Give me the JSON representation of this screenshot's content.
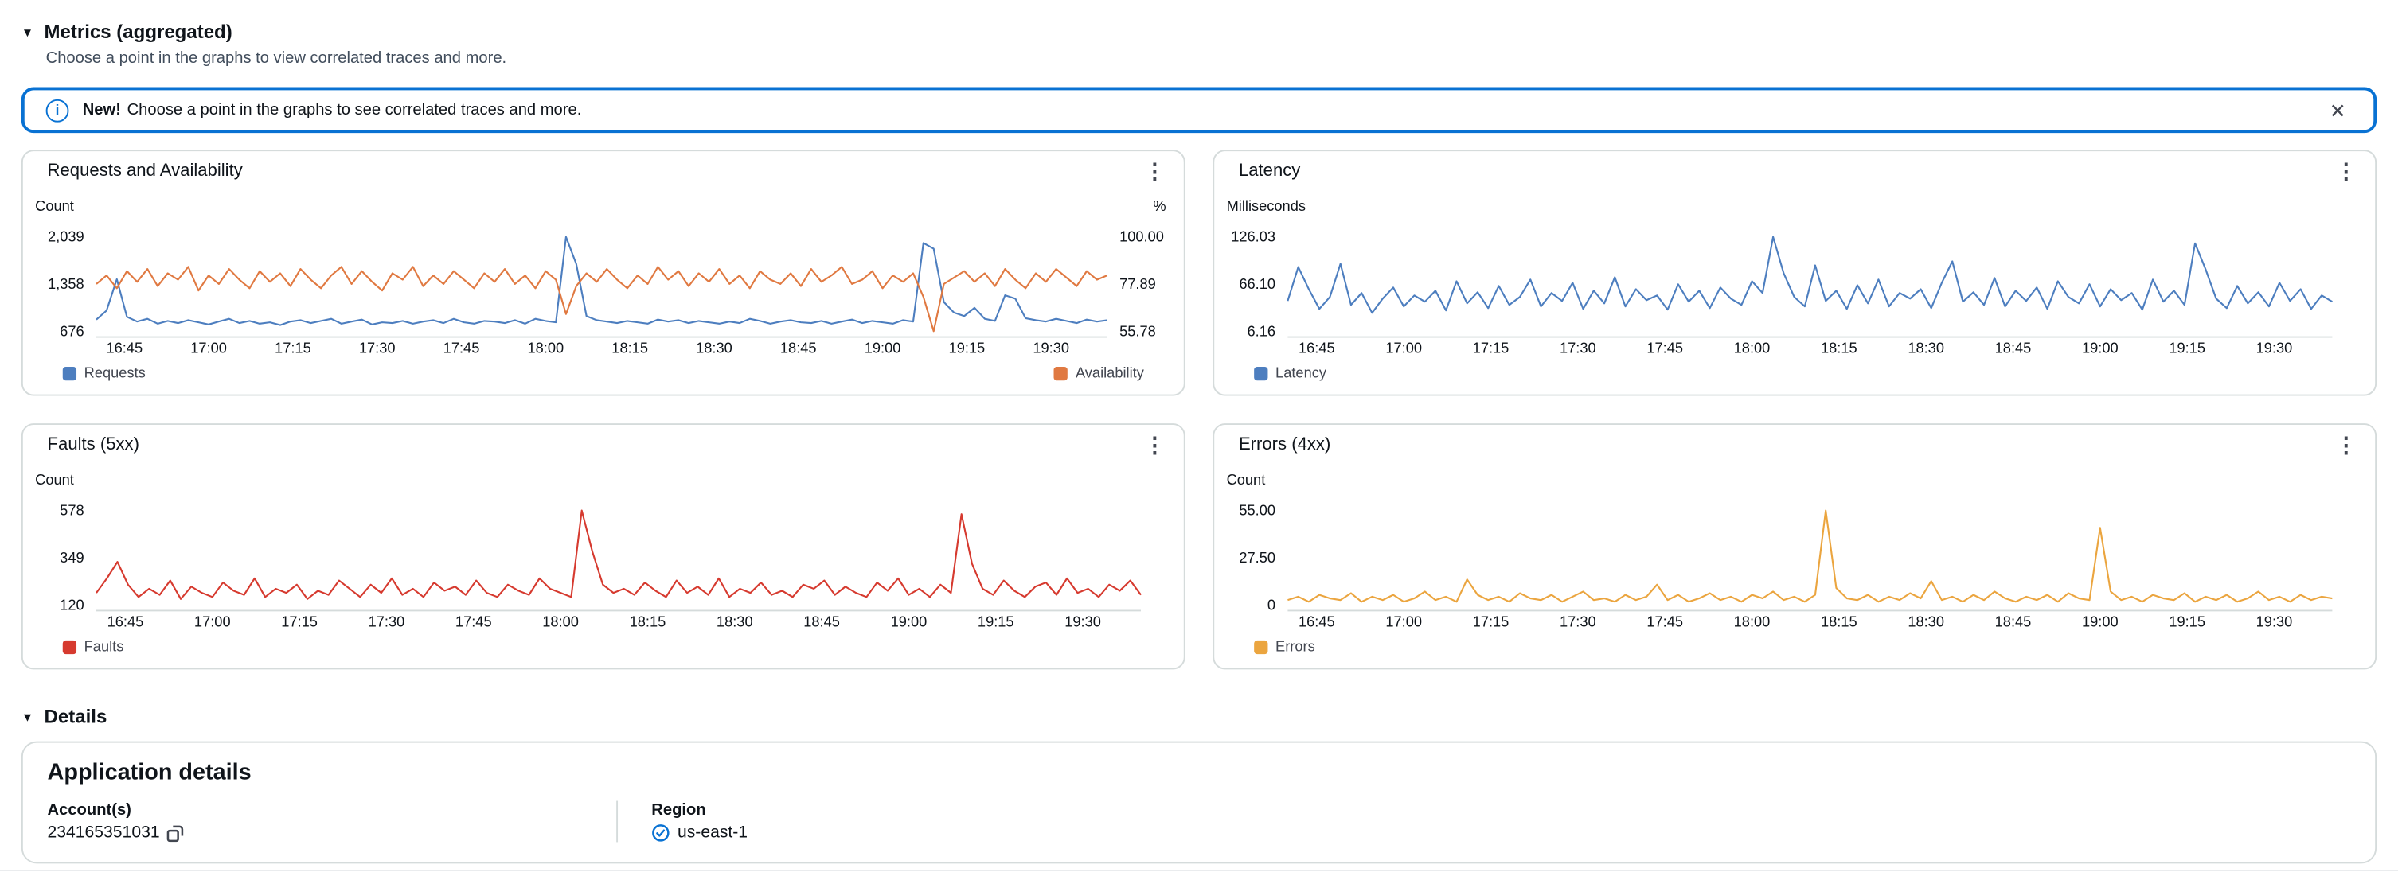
{
  "metrics_section": {
    "title": "Metrics (aggregated)",
    "subtitle": "Choose a point in the graphs to view correlated traces and more."
  },
  "banner": {
    "badge": "New!",
    "text": "Choose a point in the graphs to see correlated traces and more."
  },
  "details_section": {
    "title": "Details"
  },
  "application_details": {
    "title": "Application details",
    "fields": [
      {
        "label": "Account(s)",
        "value": "234165351031"
      },
      {
        "label": "Region",
        "value": "us-east-1"
      }
    ]
  },
  "icons": {
    "caret": "▼",
    "kebab": "⋮",
    "close": "✕",
    "info": "i"
  },
  "colors": {
    "accent_blue": "#0972d3",
    "line_blue": "#4d7ebf",
    "line_orange": "#e07941",
    "line_red": "#d63a2f",
    "line_amber": "#eba53f",
    "border": "#d5dbdb"
  },
  "x_ticks": [
    "16:45",
    "17:00",
    "17:15",
    "17:30",
    "17:45",
    "18:00",
    "18:15",
    "18:30",
    "18:45",
    "19:00",
    "19:15",
    "19:30"
  ],
  "charts": {
    "requests_availability": {
      "title": "Requests and Availability",
      "left_axis": {
        "unit": "Count",
        "ticks": [
          "2,039",
          "1,358",
          "676"
        ],
        "min": 676,
        "max": 2039
      },
      "right_axis": {
        "unit": "%",
        "ticks": [
          "100.00",
          "77.89",
          "55.78"
        ],
        "min": 55.78,
        "max": 100
      },
      "legend": [
        {
          "label": "Requests",
          "color": "#4d7ebf",
          "align": "left"
        },
        {
          "label": "Availability",
          "color": "#e07941",
          "align": "right"
        }
      ],
      "series": [
        {
          "name": "Requests",
          "axis": "left",
          "color": "#4d7ebf",
          "values": [
            850,
            980,
            1430,
            890,
            820,
            860,
            790,
            830,
            800,
            840,
            810,
            780,
            820,
            860,
            800,
            830,
            790,
            810,
            770,
            820,
            840,
            800,
            830,
            860,
            790,
            820,
            850,
            780,
            810,
            800,
            830,
            790,
            820,
            840,
            800,
            860,
            810,
            790,
            830,
            820,
            800,
            840,
            790,
            860,
            830,
            810,
            2039,
            1650,
            900,
            840,
            820,
            800,
            830,
            810,
            790,
            850,
            820,
            840,
            800,
            830,
            810,
            790,
            820,
            800,
            860,
            830,
            790,
            820,
            840,
            810,
            800,
            830,
            790,
            820,
            850,
            800,
            830,
            810,
            790,
            840,
            820,
            1950,
            1870,
            1100,
            950,
            900,
            1020,
            860,
            830,
            1200,
            1150,
            870,
            840,
            820,
            860,
            830,
            800,
            850,
            820,
            840
          ]
        },
        {
          "name": "Availability",
          "axis": "right",
          "color": "#e07941",
          "values": [
            78,
            82,
            76,
            84,
            79,
            85,
            77,
            83,
            80,
            86,
            75,
            82,
            78,
            85,
            80,
            76,
            84,
            79,
            83,
            77,
            85,
            80,
            76,
            82,
            86,
            78,
            84,
            79,
            75,
            83,
            80,
            86,
            77,
            82,
            78,
            84,
            80,
            76,
            83,
            79,
            85,
            78,
            82,
            76,
            84,
            80,
            64,
            77,
            83,
            79,
            85,
            80,
            76,
            82,
            78,
            86,
            80,
            84,
            77,
            83,
            79,
            85,
            78,
            82,
            76,
            84,
            80,
            78,
            83,
            77,
            85,
            79,
            82,
            86,
            78,
            80,
            84,
            76,
            82,
            79,
            83,
            72,
            56,
            78,
            81,
            84,
            79,
            83,
            77,
            85,
            80,
            76,
            83,
            79,
            85,
            81,
            77,
            84,
            80,
            82
          ]
        }
      ]
    },
    "latency": {
      "title": "Latency",
      "left_axis": {
        "unit": "Milliseconds",
        "ticks": [
          "126.03",
          "66.10",
          "6.16"
        ],
        "min": 6.16,
        "max": 126.03
      },
      "legend": [
        {
          "label": "Latency",
          "color": "#4d7ebf",
          "align": "left"
        }
      ],
      "series": [
        {
          "name": "Latency",
          "axis": "left",
          "color": "#4d7ebf",
          "values": [
            45,
            88,
            60,
            35,
            50,
            92,
            40,
            55,
            30,
            48,
            62,
            38,
            52,
            44,
            58,
            33,
            70,
            42,
            56,
            36,
            64,
            40,
            50,
            72,
            38,
            55,
            45,
            68,
            35,
            58,
            42,
            75,
            38,
            60,
            46,
            52,
            34,
            66,
            44,
            58,
            36,
            62,
            48,
            40,
            70,
            55,
            126,
            80,
            50,
            38,
            90,
            45,
            58,
            35,
            65,
            42,
            72,
            38,
            55,
            48,
            60,
            36,
            68,
            95,
            44,
            56,
            40,
            74,
            38,
            58,
            45,
            62,
            35,
            70,
            50,
            42,
            66,
            38,
            60,
            46,
            55,
            34,
            72,
            44,
            58,
            40,
            118,
            85,
            48,
            36,
            64,
            42,
            56,
            38,
            68,
            45,
            60,
            35,
            52,
            44
          ]
        }
      ]
    },
    "faults_5xx": {
      "title": "Faults (5xx)",
      "left_axis": {
        "unit": "Count",
        "ticks": [
          "578",
          "349",
          "120"
        ],
        "min": 120,
        "max": 578
      },
      "legend": [
        {
          "label": "Faults",
          "color": "#d63a2f",
          "align": "left"
        }
      ],
      "series": [
        {
          "name": "Faults",
          "axis": "left",
          "color": "#d63a2f",
          "values": [
            180,
            250,
            330,
            220,
            160,
            200,
            170,
            240,
            150,
            210,
            180,
            160,
            230,
            190,
            170,
            250,
            160,
            200,
            180,
            220,
            150,
            190,
            170,
            240,
            200,
            160,
            220,
            180,
            250,
            170,
            200,
            160,
            230,
            190,
            210,
            170,
            240,
            180,
            160,
            220,
            190,
            170,
            250,
            200,
            180,
            160,
            578,
            380,
            220,
            180,
            200,
            170,
            230,
            190,
            160,
            240,
            180,
            210,
            170,
            250,
            160,
            200,
            180,
            230,
            170,
            190,
            160,
            220,
            200,
            240,
            170,
            210,
            180,
            160,
            230,
            190,
            250,
            170,
            200,
            160,
            220,
            180,
            560,
            320,
            200,
            170,
            240,
            190,
            160,
            210,
            230,
            170,
            250,
            180,
            200,
            160,
            220,
            190,
            240,
            170
          ]
        }
      ]
    },
    "errors_4xx": {
      "title": "Errors (4xx)",
      "left_axis": {
        "unit": "Count",
        "ticks": [
          "55.00",
          "27.50",
          "0"
        ],
        "min": 0,
        "max": 55
      },
      "legend": [
        {
          "label": "Errors",
          "color": "#eba53f",
          "align": "left"
        }
      ],
      "series": [
        {
          "name": "Errors",
          "axis": "left",
          "color": "#eba53f",
          "values": [
            3,
            5,
            2,
            6,
            4,
            3,
            7,
            2,
            5,
            3,
            6,
            2,
            4,
            8,
            3,
            5,
            2,
            15,
            6,
            3,
            5,
            2,
            7,
            4,
            3,
            6,
            2,
            5,
            8,
            3,
            4,
            2,
            6,
            3,
            5,
            12,
            3,
            6,
            2,
            4,
            7,
            3,
            5,
            2,
            6,
            4,
            8,
            3,
            5,
            2,
            6,
            55,
            10,
            4,
            3,
            6,
            2,
            5,
            3,
            7,
            4,
            14,
            3,
            5,
            2,
            6,
            3,
            8,
            4,
            2,
            5,
            3,
            6,
            2,
            7,
            4,
            3,
            45,
            8,
            3,
            5,
            2,
            6,
            4,
            3,
            7,
            2,
            5,
            3,
            6,
            2,
            4,
            8,
            3,
            5,
            2,
            6,
            3,
            5,
            4
          ]
        }
      ]
    }
  }
}
